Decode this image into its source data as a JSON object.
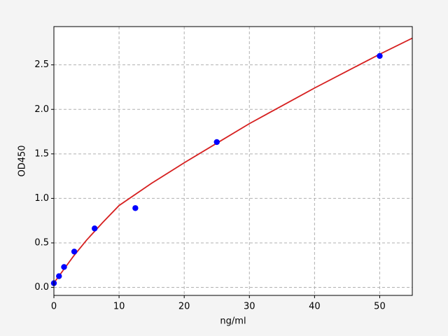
{
  "chart_data": {
    "type": "scatter",
    "xlabel": "ng/ml",
    "ylabel": "OD450",
    "x": [
      0,
      0.78,
      1.56,
      3.125,
      6.25,
      12.5,
      25,
      50
    ],
    "values": [
      0.047,
      0.126,
      0.229,
      0.402,
      0.662,
      0.891,
      1.633,
      2.6
    ],
    "color": "#0000ff",
    "fit": {
      "color": "#d62020",
      "x": [
        0,
        1,
        2,
        3,
        5,
        7.5,
        10,
        15,
        20,
        25,
        30,
        35,
        40,
        45,
        50,
        55
      ],
      "values": [
        0.05,
        0.15,
        0.25,
        0.35,
        0.53,
        0.73,
        0.92,
        1.17,
        1.4,
        1.62,
        1.84,
        2.04,
        2.24,
        2.43,
        2.62,
        2.8
      ]
    },
    "xlim": [
      0,
      55
    ],
    "xticks": [
      0,
      10,
      20,
      30,
      40,
      50
    ],
    "ylim": [
      -0.09,
      2.93
    ],
    "yticks": [
      {
        "value": 0,
        "label": "0.0"
      },
      {
        "value": 0.5,
        "label": "0.5"
      },
      {
        "value": 1,
        "label": "1.0"
      },
      {
        "value": 1.5,
        "label": "1.5"
      },
      {
        "value": 2,
        "label": "2.0"
      },
      {
        "value": 2.5,
        "label": "2.5"
      }
    ],
    "grid": true
  }
}
